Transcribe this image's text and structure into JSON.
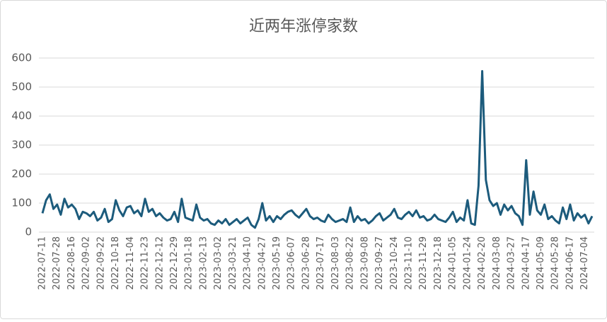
{
  "chart_data": {
    "type": "line",
    "title": "近两年涨停家数",
    "categories": [
      "2022-07-11",
      null,
      null,
      null,
      "2022-07-28",
      null,
      null,
      null,
      "2022-08-16",
      null,
      null,
      null,
      "2022-09-02",
      null,
      null,
      null,
      "2022-09-22",
      null,
      null,
      null,
      "2022-10-18",
      null,
      null,
      null,
      "2022-11-04",
      null,
      null,
      null,
      "2022-11-23",
      null,
      null,
      null,
      "2022-12-12",
      null,
      null,
      null,
      "2022-12-29",
      null,
      null,
      null,
      "2023-01-18",
      null,
      null,
      null,
      "2023-02-13",
      null,
      null,
      null,
      "2023-03-02",
      null,
      null,
      null,
      "2023-03-21",
      null,
      null,
      null,
      "2023-04-10",
      null,
      null,
      null,
      "2023-04-27",
      null,
      null,
      null,
      "2023-05-19",
      null,
      null,
      null,
      "2023-06-07",
      null,
      null,
      null,
      "2023-06-28",
      null,
      null,
      null,
      "2023-07-17",
      null,
      null,
      null,
      "2023-08-03",
      null,
      null,
      null,
      "2023-08-22",
      null,
      null,
      null,
      "2023-09-08",
      null,
      null,
      null,
      "2023-09-27",
      null,
      null,
      null,
      "2023-10-24",
      null,
      null,
      null,
      "2023-11-10",
      null,
      null,
      null,
      "2023-11-29",
      null,
      null,
      null,
      "2023-12-18",
      null,
      null,
      null,
      "2024-01-05",
      null,
      null,
      null,
      "2024-01-24",
      null,
      null,
      null,
      "2024-02-20",
      null,
      null,
      null,
      "2024-03-08",
      null,
      null,
      null,
      "2024-03-27",
      null,
      null,
      null,
      "2024-04-17",
      null,
      null,
      null,
      "2024-05-09",
      null,
      null,
      null,
      "2024-05-28",
      null,
      null,
      null,
      "2024-06-17",
      null,
      null,
      null,
      "2024-07-04",
      null,
      null
    ],
    "series": [
      {
        "name": "涨停家数",
        "color": "#1c5b7c",
        "values": [
          65,
          110,
          130,
          80,
          95,
          60,
          115,
          85,
          95,
          80,
          45,
          70,
          65,
          55,
          70,
          40,
          50,
          80,
          35,
          45,
          110,
          75,
          55,
          85,
          90,
          65,
          75,
          55,
          115,
          70,
          80,
          55,
          65,
          50,
          40,
          45,
          70,
          35,
          115,
          50,
          45,
          40,
          95,
          50,
          40,
          45,
          30,
          25,
          40,
          30,
          45,
          25,
          35,
          45,
          30,
          40,
          50,
          25,
          15,
          45,
          100,
          40,
          55,
          35,
          55,
          45,
          60,
          70,
          75,
          60,
          50,
          65,
          80,
          55,
          45,
          50,
          40,
          35,
          60,
          45,
          35,
          40,
          45,
          35,
          85,
          35,
          55,
          40,
          45,
          30,
          40,
          55,
          65,
          40,
          50,
          60,
          80,
          50,
          45,
          60,
          70,
          55,
          75,
          50,
          55,
          40,
          45,
          60,
          45,
          40,
          35,
          50,
          70,
          35,
          50,
          40,
          110,
          30,
          25,
          160,
          555,
          180,
          110,
          90,
          100,
          60,
          95,
          75,
          90,
          65,
          55,
          25,
          248,
          60,
          140,
          75,
          60,
          95,
          45,
          55,
          40,
          30,
          85,
          45,
          95,
          40,
          65,
          50,
          60,
          30,
          55
        ]
      }
    ],
    "ylim": [
      0,
      600
    ],
    "yticks": [
      0,
      100,
      200,
      300,
      400,
      500,
      600
    ],
    "grid": true
  }
}
